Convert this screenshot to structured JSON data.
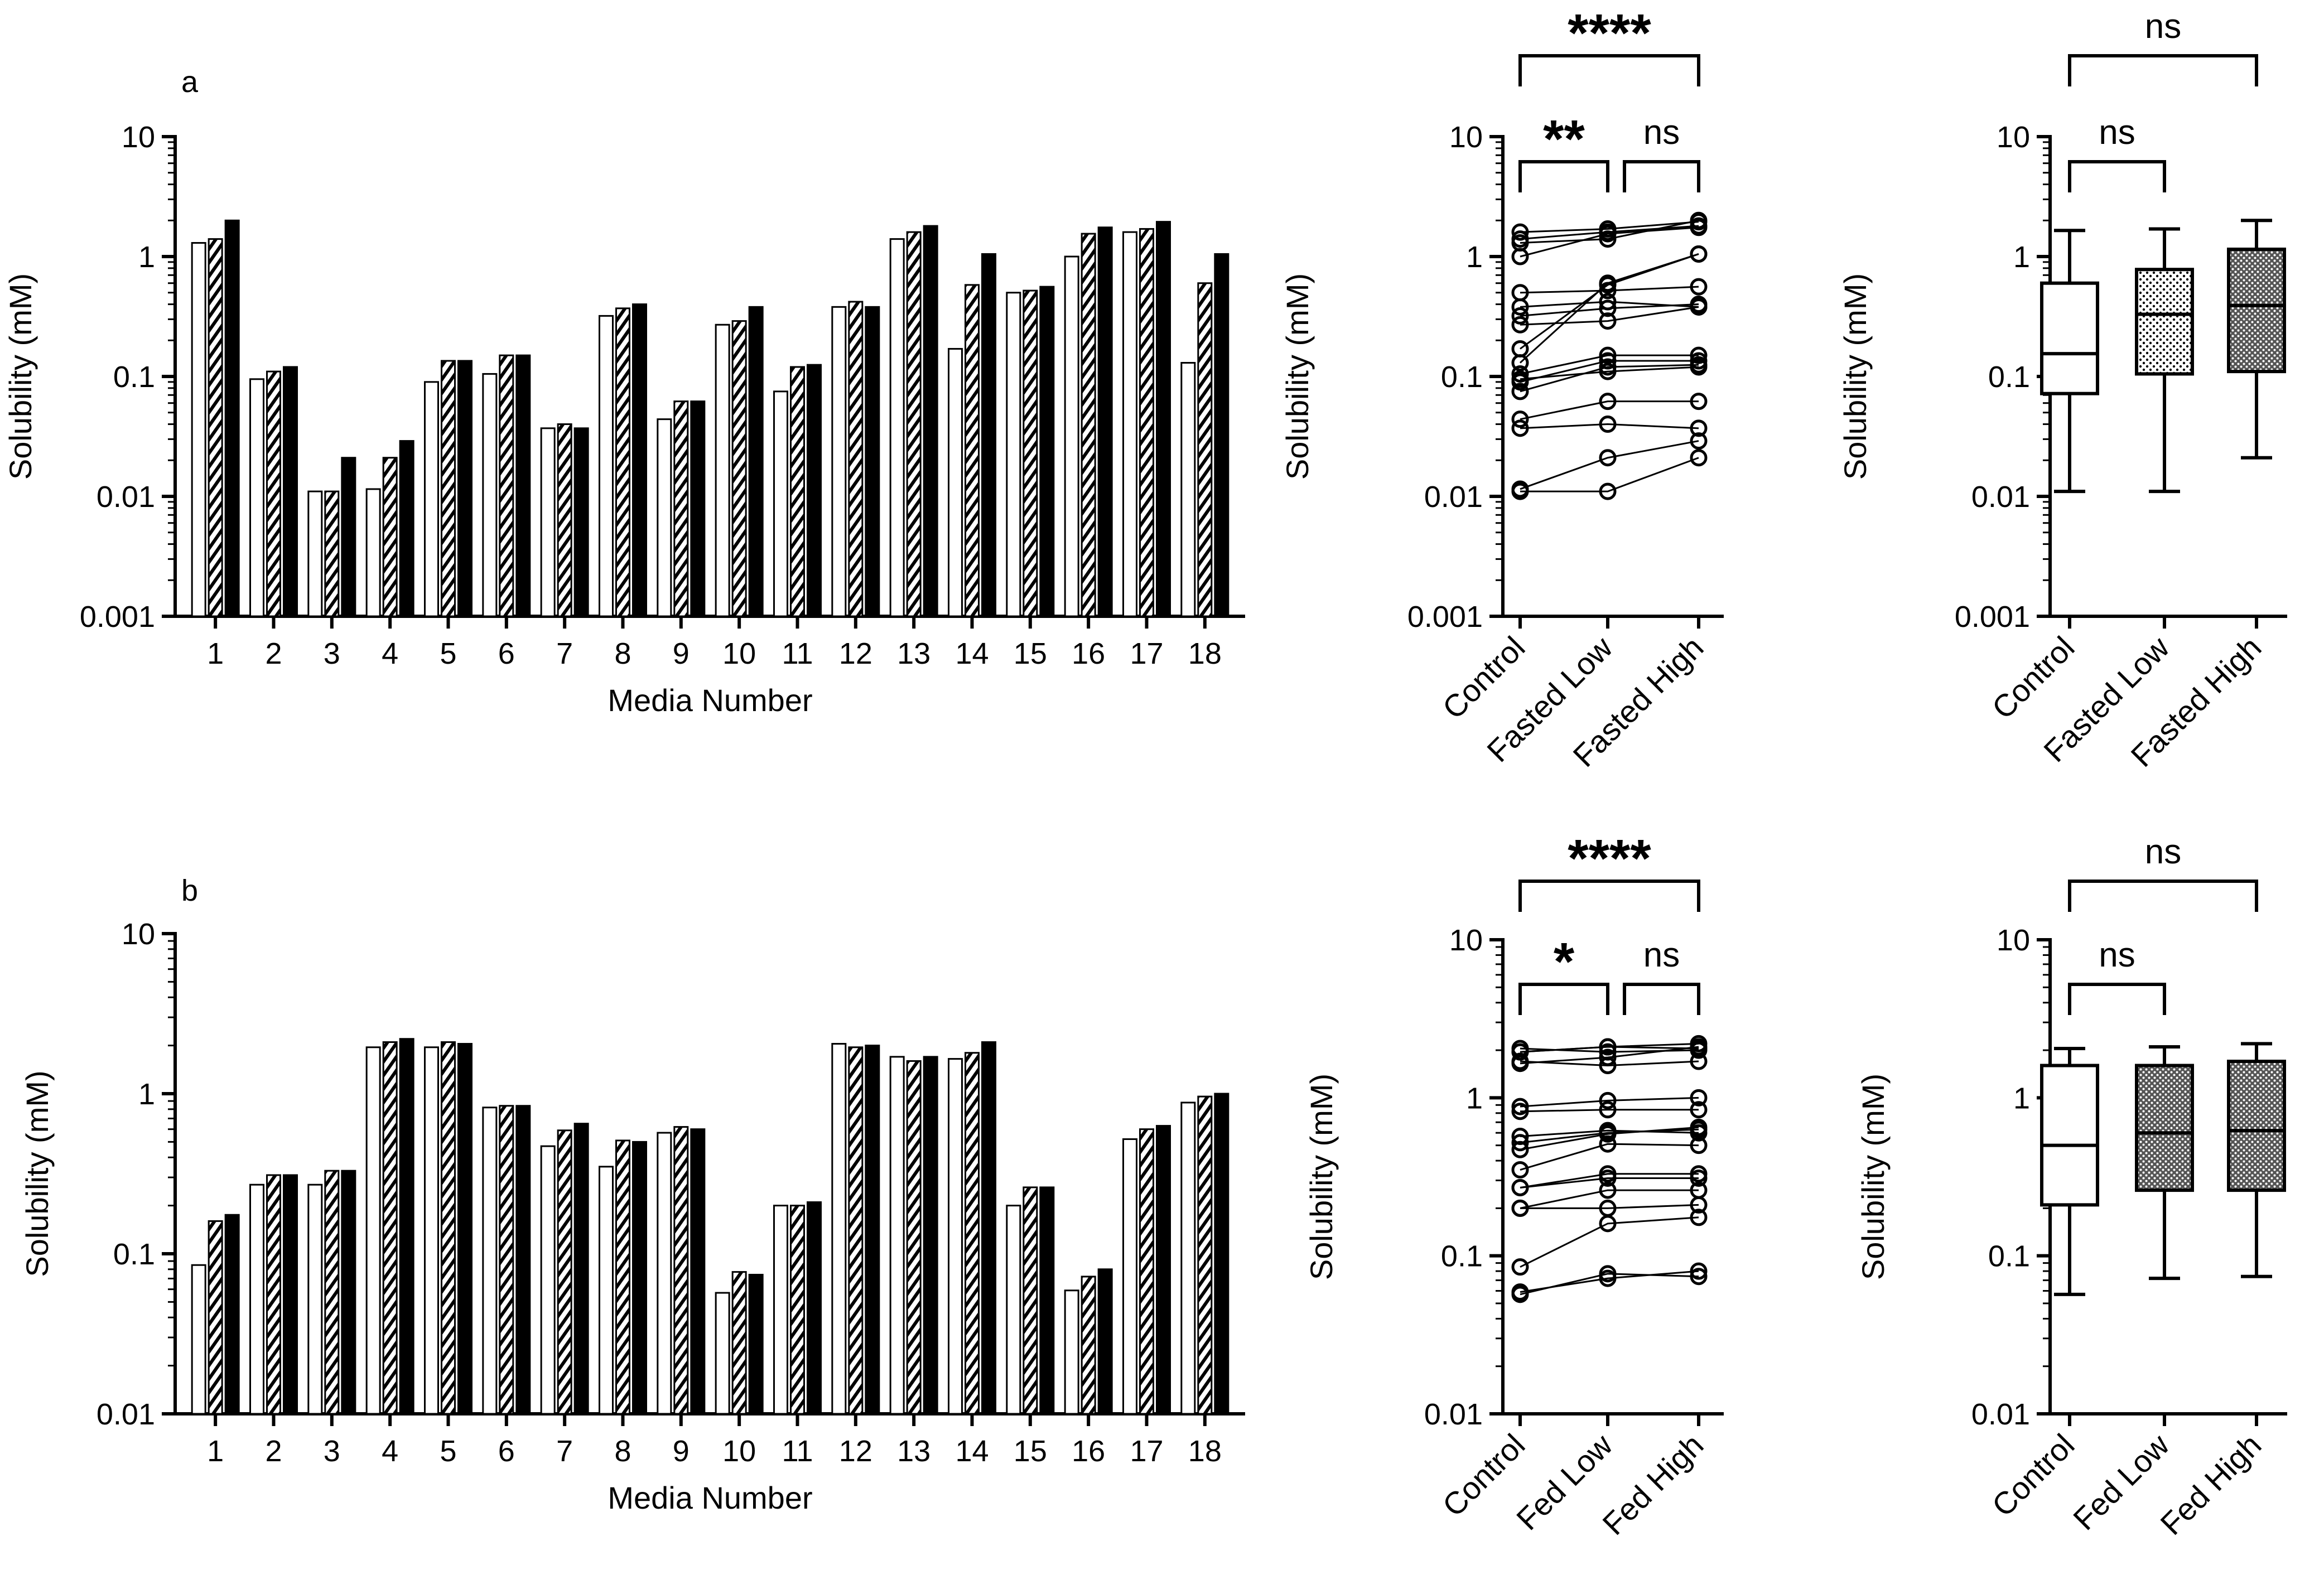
{
  "chart_data": [
    {
      "panel": "a",
      "type": "bar",
      "xlabel": "Media Number",
      "ylabel": "Solubility (mM)",
      "yscale": "log",
      "ylim": [
        0.001,
        10
      ],
      "ytick_labels": [
        "0.001",
        "0.01",
        "0.1",
        "1",
        "10"
      ],
      "categories": [
        "1",
        "2",
        "3",
        "4",
        "5",
        "6",
        "7",
        "8",
        "9",
        "10",
        "11",
        "12",
        "13",
        "14",
        "15",
        "16",
        "17",
        "18"
      ],
      "series": [
        {
          "fill": "open",
          "values": [
            1.3,
            0.095,
            0.011,
            0.0115,
            0.09,
            0.105,
            0.037,
            0.32,
            0.044,
            0.27,
            0.075,
            0.38,
            1.4,
            0.17,
            0.5,
            1.0,
            1.6,
            0.13
          ]
        },
        {
          "fill": "hatched",
          "values": [
            1.4,
            0.11,
            0.011,
            0.021,
            0.135,
            0.15,
            0.04,
            0.37,
            0.062,
            0.29,
            0.12,
            0.42,
            1.6,
            0.58,
            0.52,
            1.55,
            1.7,
            0.6
          ]
        },
        {
          "fill": "solid",
          "values": [
            2.0,
            0.12,
            0.021,
            0.029,
            0.135,
            0.15,
            0.037,
            0.4,
            0.062,
            0.38,
            0.125,
            0.38,
            1.8,
            1.05,
            0.56,
            1.75,
            1.95,
            1.05
          ]
        }
      ]
    },
    {
      "panel": "a-paired",
      "type": "line",
      "ylabel": "Solubility (mM)",
      "yscale": "log",
      "ylim": [
        0.001,
        10
      ],
      "ytick_labels": [
        "0.001",
        "0.01",
        "0.1",
        "1",
        "10"
      ],
      "categories": [
        "Control",
        "Fasted Low",
        "Fasted High"
      ],
      "paired_values": [
        [
          1.3,
          1.4,
          2.0
        ],
        [
          0.095,
          0.11,
          0.12
        ],
        [
          0.011,
          0.011,
          0.021
        ],
        [
          0.0115,
          0.021,
          0.029
        ],
        [
          0.09,
          0.135,
          0.135
        ],
        [
          0.105,
          0.15,
          0.15
        ],
        [
          0.037,
          0.04,
          0.037
        ],
        [
          0.32,
          0.37,
          0.4
        ],
        [
          0.044,
          0.062,
          0.062
        ],
        [
          0.27,
          0.29,
          0.38
        ],
        [
          0.075,
          0.12,
          0.125
        ],
        [
          0.38,
          0.42,
          0.38
        ],
        [
          1.4,
          1.6,
          1.8
        ],
        [
          0.17,
          0.58,
          1.05
        ],
        [
          0.5,
          0.52,
          0.56
        ],
        [
          1.0,
          1.55,
          1.75
        ],
        [
          1.6,
          1.7,
          1.95
        ],
        [
          0.13,
          0.6,
          1.05
        ]
      ],
      "significance": [
        {
          "from": 0,
          "to": 1,
          "label": "**"
        },
        {
          "from": 1,
          "to": 2,
          "label": "ns"
        },
        {
          "from": 0,
          "to": 2,
          "label": "****"
        }
      ]
    },
    {
      "panel": "a-box",
      "type": "box",
      "ylabel": "Solubility (mM)",
      "yscale": "log",
      "ylim": [
        0.001,
        10
      ],
      "ytick_labels": [
        "0.001",
        "0.01",
        "0.1",
        "1",
        "10"
      ],
      "categories": [
        "Control",
        "Fasted Low",
        "Fasted High"
      ],
      "boxes": [
        {
          "min": 0.011,
          "q1": 0.072,
          "median": 0.155,
          "q3": 0.6,
          "max": 1.65,
          "fill": "open"
        },
        {
          "min": 0.011,
          "q1": 0.105,
          "median": 0.33,
          "q3": 0.78,
          "max": 1.7,
          "fill": "light-dotted"
        },
        {
          "min": 0.021,
          "q1": 0.11,
          "median": 0.39,
          "q3": 1.15,
          "max": 2.0,
          "fill": "dense-dotted"
        }
      ],
      "significance": [
        {
          "from": 0,
          "to": 1,
          "label": "ns"
        },
        {
          "from": 0,
          "to": 2,
          "label": "ns"
        }
      ]
    },
    {
      "panel": "b",
      "type": "bar",
      "xlabel": "Media Number",
      "ylabel": "Solubility (mM)",
      "yscale": "log",
      "ylim": [
        0.01,
        10
      ],
      "ytick_labels": [
        "0.01",
        "0.1",
        "1",
        "10"
      ],
      "categories": [
        "1",
        "2",
        "3",
        "4",
        "5",
        "6",
        "7",
        "8",
        "9",
        "10",
        "11",
        "12",
        "13",
        "14",
        "15",
        "16",
        "17",
        "18"
      ],
      "series": [
        {
          "fill": "open",
          "values": [
            0.085,
            0.27,
            0.27,
            1.95,
            1.95,
            0.82,
            0.47,
            0.35,
            0.57,
            0.057,
            0.2,
            2.05,
            1.7,
            1.65,
            0.2,
            0.059,
            0.52,
            0.88
          ]
        },
        {
          "fill": "hatched",
          "values": [
            0.16,
            0.31,
            0.33,
            2.1,
            2.1,
            0.84,
            0.59,
            0.51,
            0.62,
            0.077,
            0.2,
            1.95,
            1.6,
            1.8,
            0.26,
            0.072,
            0.6,
            0.96
          ]
        },
        {
          "fill": "solid",
          "values": [
            0.175,
            0.31,
            0.33,
            2.2,
            2.05,
            0.84,
            0.65,
            0.5,
            0.6,
            0.074,
            0.21,
            2.0,
            1.7,
            2.1,
            0.26,
            0.08,
            0.63,
            1.0
          ]
        }
      ]
    },
    {
      "panel": "b-paired",
      "type": "line",
      "ylabel": "Solubility (mM)",
      "yscale": "log",
      "ylim": [
        0.01,
        10
      ],
      "ytick_labels": [
        "0.01",
        "0.1",
        "1",
        "10"
      ],
      "categories": [
        "Control",
        "Fed Low",
        "Fed High"
      ],
      "paired_values": [
        [
          0.085,
          0.16,
          0.175
        ],
        [
          0.27,
          0.31,
          0.31
        ],
        [
          0.27,
          0.33,
          0.33
        ],
        [
          1.95,
          2.1,
          2.2
        ],
        [
          1.95,
          2.1,
          2.05
        ],
        [
          0.82,
          0.84,
          0.84
        ],
        [
          0.47,
          0.59,
          0.65
        ],
        [
          0.35,
          0.51,
          0.5
        ],
        [
          0.57,
          0.62,
          0.6
        ],
        [
          0.057,
          0.077,
          0.074
        ],
        [
          0.2,
          0.2,
          0.21
        ],
        [
          2.05,
          1.95,
          2.0
        ],
        [
          1.7,
          1.6,
          1.7
        ],
        [
          1.65,
          1.8,
          2.1
        ],
        [
          0.2,
          0.26,
          0.26
        ],
        [
          0.059,
          0.072,
          0.08
        ],
        [
          0.52,
          0.6,
          0.63
        ],
        [
          0.88,
          0.96,
          1.0
        ]
      ],
      "significance": [
        {
          "from": 0,
          "to": 1,
          "label": "*"
        },
        {
          "from": 1,
          "to": 2,
          "label": "ns"
        },
        {
          "from": 0,
          "to": 2,
          "label": "****"
        }
      ]
    },
    {
      "panel": "b-box",
      "type": "box",
      "ylabel": "Solubility (mM)",
      "yscale": "log",
      "ylim": [
        0.01,
        10
      ],
      "ytick_labels": [
        "0.01",
        "0.1",
        "1",
        "10"
      ],
      "categories": [
        "Control",
        "Fed Low",
        "Fed High"
      ],
      "boxes": [
        {
          "min": 0.057,
          "q1": 0.21,
          "median": 0.5,
          "q3": 1.6,
          "max": 2.05,
          "fill": "open"
        },
        {
          "min": 0.072,
          "q1": 0.26,
          "median": 0.6,
          "q3": 1.6,
          "max": 2.1,
          "fill": "dense-dotted"
        },
        {
          "min": 0.074,
          "q1": 0.26,
          "median": 0.62,
          "q3": 1.7,
          "max": 2.2,
          "fill": "dense-dotted"
        }
      ],
      "significance": [
        {
          "from": 0,
          "to": 1,
          "label": "ns"
        },
        {
          "from": 0,
          "to": 2,
          "label": "ns"
        }
      ]
    }
  ]
}
